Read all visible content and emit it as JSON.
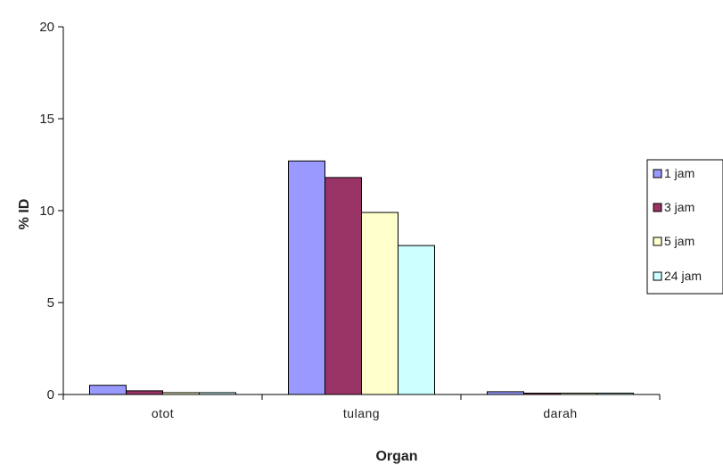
{
  "chart_data": {
    "type": "bar",
    "xlabel": "Organ",
    "ylabel": "% ID",
    "ylim": [
      0,
      20
    ],
    "yticks": [
      "0",
      "5",
      "10",
      "15",
      "20"
    ],
    "grid": false,
    "legend_position": "right",
    "categories": [
      "otot",
      "tulang",
      "darah"
    ],
    "series": [
      {
        "name": "1 jam",
        "color": "#9999ff",
        "values": [
          0.5,
          12.7,
          0.15
        ]
      },
      {
        "name": "3 jam",
        "color": "#993366",
        "values": [
          0.2,
          11.8,
          0.05
        ]
      },
      {
        "name": "5 jam",
        "color": "#ffffcc",
        "values": [
          0.1,
          9.9,
          0.05
        ]
      },
      {
        "name": "24 jam",
        "color": "#ccffff",
        "values": [
          0.1,
          8.1,
          0.05
        ]
      }
    ]
  }
}
